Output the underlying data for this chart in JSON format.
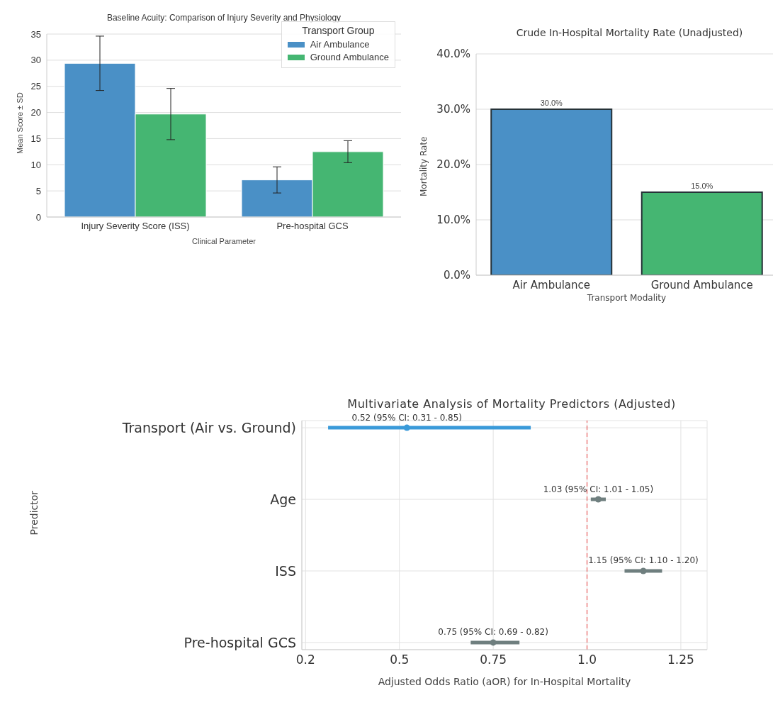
{
  "chart_data": [
    {
      "type": "bar",
      "title": "Baseline Acuity: Comparison of Injury Severity and Physiology",
      "xlabel": "Clinical Parameter",
      "ylabel": "Mean Score ± SD",
      "legend_title": "Transport Group",
      "categories": [
        "Injury Severity Score (ISS)",
        "Pre-hospital GCS"
      ],
      "series": [
        {
          "name": "Air Ambulance",
          "color": "#4a90c6",
          "values": [
            29.4,
            7.1
          ],
          "errors": [
            5.2,
            2.5
          ]
        },
        {
          "name": "Ground Ambulance",
          "color": "#45b672",
          "values": [
            19.7,
            12.5
          ],
          "errors": [
            4.9,
            2.1
          ]
        }
      ],
      "ylim": [
        0,
        35
      ],
      "yticks": [
        0,
        5,
        10,
        15,
        20,
        25,
        30,
        35
      ],
      "grid": "y",
      "legend": "top right"
    },
    {
      "type": "bar",
      "title": "Crude In-Hospital Mortality Rate (Unadjusted)",
      "xlabel": "Transport Modality",
      "ylabel": "Mortality Rate",
      "categories": [
        "Air Ambulance",
        "Ground Ambulance"
      ],
      "values": [
        30,
        15
      ],
      "colors": [
        "#4a90c6",
        "#45b672"
      ],
      "value_labels": [
        "30.0%",
        "15.0%"
      ],
      "ylim": [
        0,
        40
      ],
      "yticks": [
        {
          "value": 0,
          "label": "0.0%"
        },
        {
          "value": 10,
          "label": "10.0%"
        },
        {
          "value": 20,
          "label": "20.0%"
        },
        {
          "value": 30,
          "label": "30.0%"
        },
        {
          "value": 40,
          "label": "40.0%"
        }
      ],
      "grid": "y"
    },
    {
      "type": "scatter",
      "orientation": "horizontal",
      "title": "Multivariate Analysis of Mortality Predictors (Adjusted)",
      "xlabel": "Adjusted Odds Ratio (aOR) for In-Hospital Mortality",
      "ylabel": "Predictor",
      "categories": [
        "Transport (Air vs. Ground)",
        "Age",
        "ISS",
        "Pre-hospital GCS"
      ],
      "values": [
        0.52,
        1.03,
        1.15,
        0.75
      ],
      "errors": [
        [
          0.31,
          0.85
        ],
        [
          1.01,
          1.05
        ],
        [
          1.1,
          1.2
        ],
        [
          0.69,
          0.82
        ]
      ],
      "colors": [
        "#3a9ad9",
        "#6f7f7f",
        "#6f7f7f",
        "#6f7f7f"
      ],
      "value_labels": [
        "0.52 (95% CI: 0.31 - 0.85)",
        "1.03 (95% CI: 1.01 - 1.05)",
        "1.15 (95% CI: 1.10 - 1.20)",
        "0.75 (95% CI: 0.69 - 0.82)"
      ],
      "marker": "circle",
      "xlim": [
        0.24,
        1.32
      ],
      "xticks": [
        {
          "value": 0.25,
          "label": "0.2"
        },
        0.5,
        0.75,
        {
          "value": 1.0,
          "label": "1.0"
        },
        1.25
      ],
      "ref_lines": [
        {
          "axis": "x",
          "value": 1.0,
          "color": "#e03030",
          "line_style": "dashed"
        }
      ],
      "grid": true
    }
  ]
}
